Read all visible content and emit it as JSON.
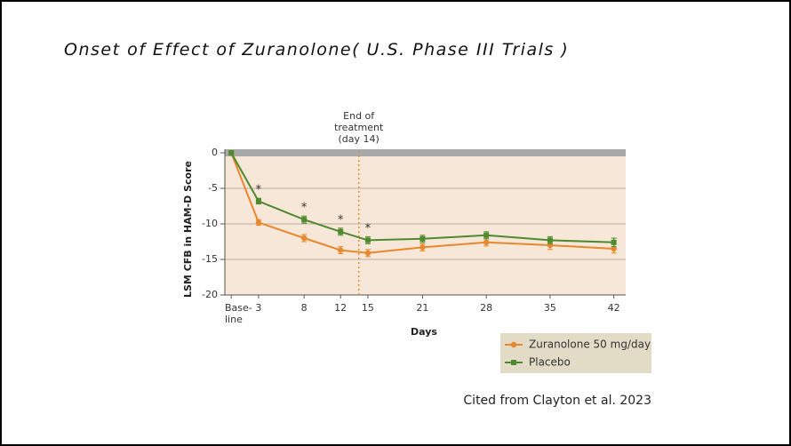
{
  "chart_data": {
    "type": "line",
    "title": "Onset of Effect of  Zuranolone( U.S. Phase III Trials )",
    "xlabel": "Days",
    "ylabel": "LSM CFB in HAM-D Score",
    "x": [
      0,
      3,
      8,
      12,
      15,
      21,
      28,
      35,
      42
    ],
    "xlim": [
      -0.7,
      43.3
    ],
    "xticks": [
      {
        "value": 0,
        "label": "Base-\nline"
      },
      3,
      8,
      12,
      15,
      21,
      28,
      35,
      42
    ],
    "ylim": [
      -20,
      0
    ],
    "yticks": [
      0,
      -5,
      -10,
      -15,
      -20
    ],
    "grid": true,
    "series": [
      {
        "name": "Zuranolone 50 mg/day",
        "color": "#e8882e",
        "marker": "circle",
        "values": [
          0,
          -9.8,
          -12,
          -13.7,
          -14.1,
          -13.3,
          -12.6,
          -13.0,
          -13.5
        ],
        "errors": [
          0,
          0.4,
          0.5,
          0.5,
          0.5,
          0.5,
          0.5,
          0.6,
          0.6
        ]
      },
      {
        "name": "Placebo",
        "color": "#4f8a2f",
        "marker": "square",
        "values": [
          0,
          -6.8,
          -9.4,
          -11.1,
          -12.3,
          -12.1,
          -11.6,
          -12.3,
          -12.6
        ],
        "errors": [
          0,
          0.4,
          0.5,
          0.5,
          0.5,
          0.5,
          0.5,
          0.5,
          0.6
        ]
      }
    ],
    "annotations": [
      {
        "x": 3,
        "text": "*"
      },
      {
        "x": 8,
        "text": "*"
      },
      {
        "x": 12,
        "text": "*"
      },
      {
        "x": 15,
        "text": "*"
      }
    ],
    "vline": {
      "x": 14,
      "text": "End of\ntreatment\n(day 14)"
    },
    "source": "Cited from Clayton et al. 2023"
  }
}
